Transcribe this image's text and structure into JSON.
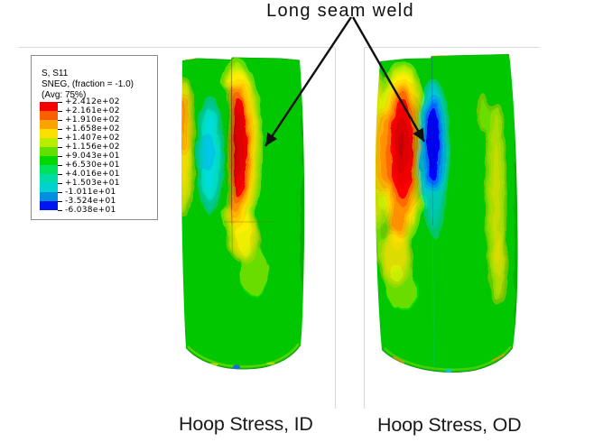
{
  "annotation": {
    "label": "Long seam weld"
  },
  "captions": {
    "left": "Hoop Stress, ID",
    "right": "Hoop Stress, OD"
  },
  "legend": {
    "field_line": "S, S11",
    "sneg_line": "SNEG, (fraction = -1.0)",
    "avg_line": "(Avg: 75%)",
    "tick_labels": [
      "+2.412e+02",
      "+2.161e+02",
      "+1.910e+02",
      "+1.658e+02",
      "+1.407e+02",
      "+1.156e+02",
      "+9.043e+01",
      "+6.530e+01",
      "+4.016e+01",
      "+1.503e+01",
      "-1.011e+01",
      "-3.524e+01",
      "-6.038e+01"
    ],
    "band_colors": [
      "#f50000",
      "#fa6000",
      "#fda400",
      "#fbe000",
      "#b8ec00",
      "#62e000",
      "#00d800",
      "#00e160",
      "#00dca6",
      "#00d2d2",
      "#008ee0",
      "#0016f0"
    ]
  }
}
